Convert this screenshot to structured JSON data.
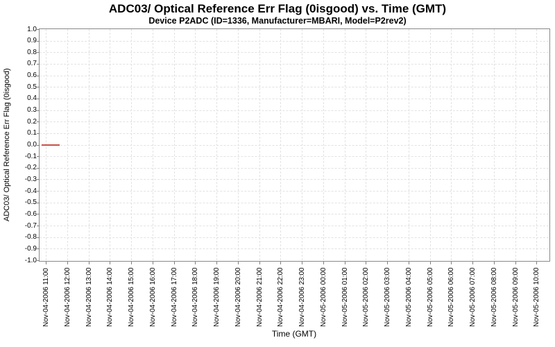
{
  "chart": {
    "title": "ADC03/ Optical Reference Err Flag (0isgood) vs. Time (GMT)",
    "subtitle": "Device P2ADC (ID=1336, Manufacturer=MBARI, Model=P2rev2)",
    "xlabel": "Time (GMT)",
    "ylabel": "ADC03/ Optical Reference Err Flag (0isgood)"
  },
  "chart_data": {
    "type": "line",
    "title": "ADC03/ Optical Reference Err Flag (0isgood) vs. Time (GMT)",
    "subtitle": "Device P2ADC (ID=1336, Manufacturer=MBARI, Model=P2rev2)",
    "xlabel": "Time (GMT)",
    "ylabel": "ADC03/ Optical Reference Err Flag (0isgood)",
    "ylim": [
      -1.0,
      1.0
    ],
    "y_tick_step": 0.1,
    "grid": true,
    "legend": "none",
    "y_tick_labels": [
      "1.0",
      "0.9",
      "0.8",
      "0.7",
      "0.6",
      "0.5",
      "0.4",
      "0.3",
      "0.2",
      "0.1",
      "0.0",
      "-0.1",
      "-0.2",
      "-0.3",
      "-0.4",
      "-0.5",
      "-0.6",
      "-0.7",
      "-0.8",
      "-0.9",
      "-1.0"
    ],
    "x_tick_labels": [
      "Nov-04-2006 11:00",
      "Nov-04-2006 12:00",
      "Nov-04-2006 13:00",
      "Nov-04-2006 14:00",
      "Nov-04-2006 15:00",
      "Nov-04-2006 16:00",
      "Nov-04-2006 17:00",
      "Nov-04-2006 18:00",
      "Nov-04-2006 19:00",
      "Nov-04-2006 20:00",
      "Nov-04-2006 21:00",
      "Nov-04-2006 22:00",
      "Nov-04-2006 23:00",
      "Nov-05-2006 00:00",
      "Nov-05-2006 01:00",
      "Nov-05-2006 02:00",
      "Nov-05-2006 03:00",
      "Nov-05-2006 04:00",
      "Nov-05-2006 05:00",
      "Nov-05-2006 06:00",
      "Nov-05-2006 07:00",
      "Nov-05-2006 08:00",
      "Nov-05-2006 09:00",
      "Nov-05-2006 10:00"
    ],
    "series": [
      {
        "name": "ADC03/ Optical Reference Err Flag (0isgood)",
        "color": "#c8504b",
        "points": [
          {
            "x": "Nov-04-2006 10:48",
            "y": 0.0
          },
          {
            "x": "Nov-04-2006 11:40",
            "y": 0.0
          }
        ],
        "note": "Short constant segment at y=0 (good) near left edge; endpoint times estimated from plot position"
      }
    ]
  }
}
